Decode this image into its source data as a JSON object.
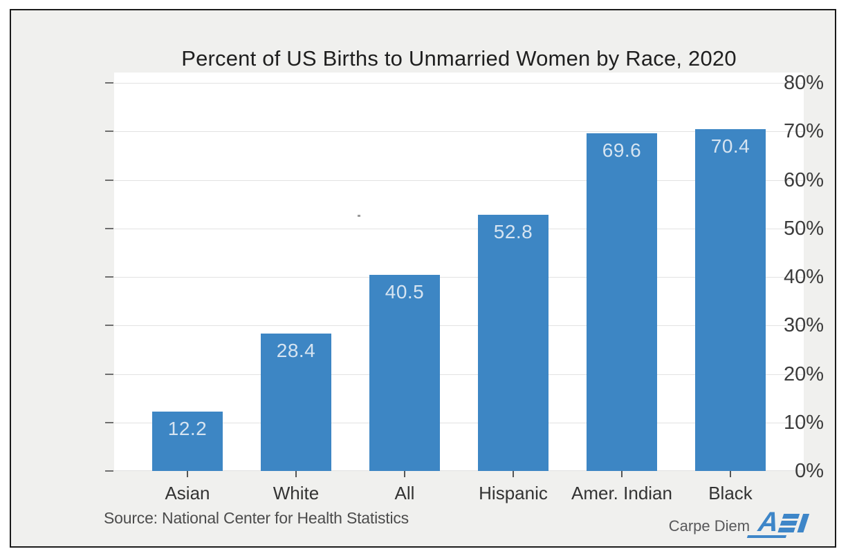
{
  "chart_data": {
    "type": "bar",
    "title": "Percent of US Births to Unmarried Women by Race, 2020",
    "categories": [
      "Asian",
      "White",
      "All",
      "Hispanic",
      "Amer. Indian",
      "Black"
    ],
    "values": [
      12.2,
      28.4,
      40.5,
      52.8,
      69.6,
      70.4
    ],
    "bar_labels": [
      "12.2",
      "28.4",
      "40.5",
      "52.8",
      "69.6",
      "70.4"
    ],
    "xlabel": "",
    "ylabel": "",
    "ylim": [
      0,
      80
    ],
    "yticks": [
      0,
      10,
      20,
      30,
      40,
      50,
      60,
      70,
      80
    ],
    "ytick_labels": [
      "0%",
      "10%",
      "20%",
      "30%",
      "40%",
      "50%",
      "60%",
      "70%",
      "80%"
    ],
    "grid": "horizontal",
    "legend": "none",
    "bar_color": "#3d86c4",
    "bar_label_color": "#d6e4f1",
    "plot_background": "#ffffff",
    "frame_background": "#f0f0ee",
    "gridline_color": "#e2e2e2"
  },
  "footer": {
    "source": "Source: National Center for Health Statistics",
    "credit": "Carpe Diem",
    "logo": "AEI",
    "logo_a": "A",
    "logo_color": "#3e86c8"
  }
}
